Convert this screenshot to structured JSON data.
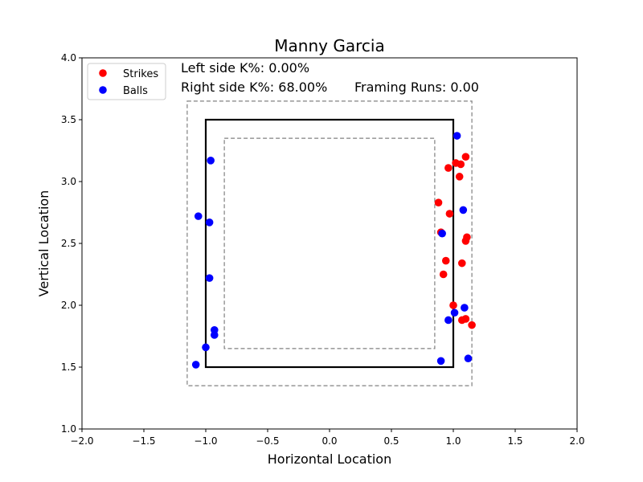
{
  "chart_data": {
    "type": "scatter",
    "title": "Manny Garcia",
    "xlabel": "Horizontal Location",
    "ylabel": "Vertical Location",
    "xlim": [
      -2.0,
      2.0
    ],
    "ylim": [
      1.0,
      4.0
    ],
    "x_ticks": [
      "−2.0",
      "−1.5",
      "−1.0",
      "−0.5",
      "0.0",
      "0.5",
      "1.0",
      "1.5",
      "2.0"
    ],
    "y_ticks": [
      "1.0",
      "1.5",
      "2.0",
      "2.5",
      "3.0",
      "3.5",
      "4.0"
    ],
    "grid": false,
    "legend_position": "top-left",
    "annotations": {
      "left_k": "Left side K%: 0.00%",
      "right_k": "Right side K%: 68.00%",
      "framing": "Framing Runs: 0.00"
    },
    "zones": {
      "strike_zone": {
        "x": [
          -1.0,
          1.0
        ],
        "y": [
          1.5,
          3.5
        ],
        "color": "#000000"
      },
      "outer_zone": {
        "x": [
          -1.15,
          1.15
        ],
        "y": [
          1.35,
          3.65
        ],
        "color": "#808080"
      },
      "inner_zone": {
        "x": [
          -0.85,
          0.85
        ],
        "y": [
          1.65,
          3.35
        ],
        "color": "#808080"
      }
    },
    "series": [
      {
        "name": "Strikes",
        "color": "#ff0000",
        "points": [
          [
            0.96,
            3.11
          ],
          [
            1.02,
            3.15
          ],
          [
            1.06,
            3.14
          ],
          [
            1.1,
            3.2
          ],
          [
            1.05,
            3.04
          ],
          [
            0.88,
            2.83
          ],
          [
            0.97,
            2.74
          ],
          [
            0.9,
            2.59
          ],
          [
            1.11,
            2.55
          ],
          [
            1.1,
            2.52
          ],
          [
            0.94,
            2.36
          ],
          [
            1.07,
            2.34
          ],
          [
            0.92,
            2.25
          ],
          [
            1.0,
            2.0
          ],
          [
            1.07,
            1.88
          ],
          [
            1.1,
            1.89
          ],
          [
            1.15,
            1.84
          ]
        ]
      },
      {
        "name": "Balls",
        "color": "#0000ff",
        "points": [
          [
            1.03,
            3.37
          ],
          [
            -0.96,
            3.17
          ],
          [
            -1.06,
            2.72
          ],
          [
            -0.97,
            2.67
          ],
          [
            -0.97,
            2.22
          ],
          [
            1.08,
            2.77
          ],
          [
            0.91,
            2.58
          ],
          [
            1.09,
            1.98
          ],
          [
            1.01,
            1.94
          ],
          [
            0.96,
            1.88
          ],
          [
            -0.93,
            1.8
          ],
          [
            -0.93,
            1.76
          ],
          [
            -1.0,
            1.66
          ],
          [
            -1.08,
            1.52
          ],
          [
            0.9,
            1.55
          ],
          [
            1.12,
            1.57
          ]
        ]
      }
    ]
  }
}
